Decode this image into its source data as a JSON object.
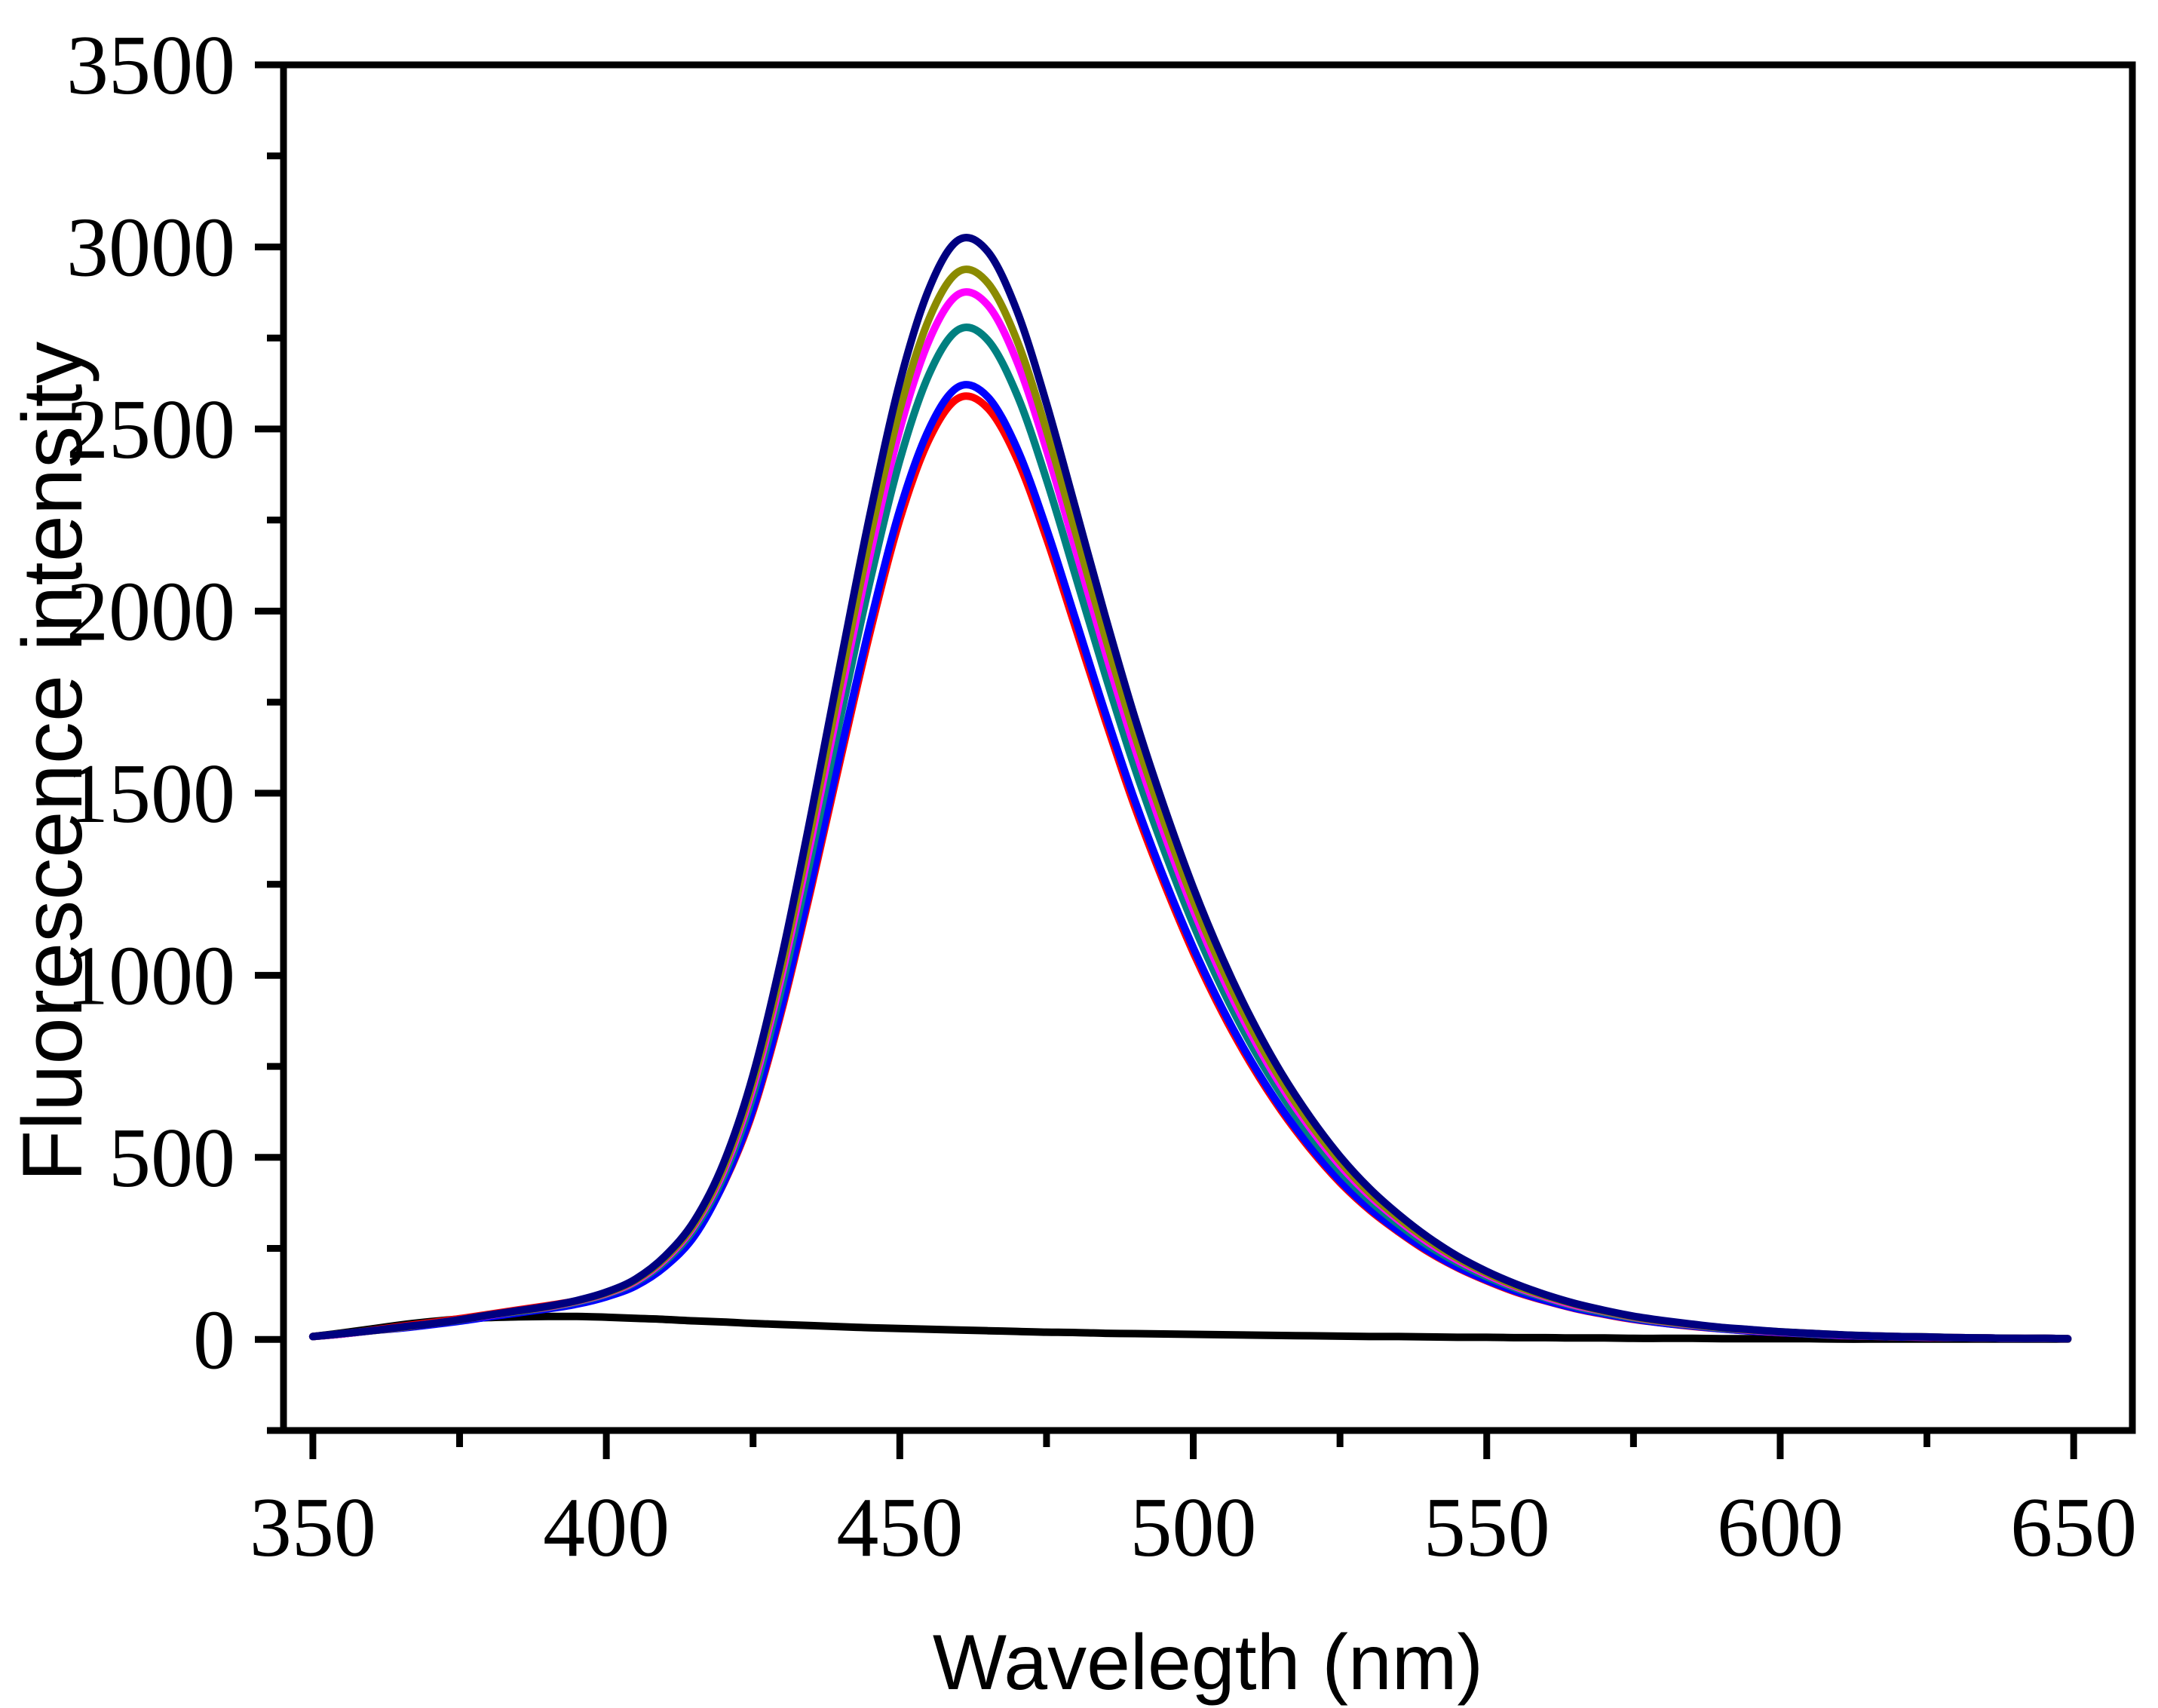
{
  "chart_data": {
    "type": "line",
    "title": "",
    "xlabel": "Wavelegth (nm)",
    "ylabel": "Fluorescence intensity",
    "xlim": [
      345,
      660
    ],
    "ylim": [
      -250,
      3500
    ],
    "grid": false,
    "legend": "none",
    "frame": "full-box",
    "tick_direction": "out",
    "x_axis": {
      "ticks_major": [
        350,
        400,
        450,
        500,
        550,
        600,
        650
      ],
      "ticks_minor": [
        375,
        425,
        475,
        525,
        575,
        625
      ],
      "tick_labels": [
        "350",
        "400",
        "450",
        "500",
        "550",
        "600",
        "650"
      ]
    },
    "y_axis": {
      "ticks_major": [
        0,
        500,
        1000,
        1500,
        2000,
        2500,
        3000,
        3500
      ],
      "ticks_minor": [
        -250,
        250,
        750,
        1250,
        1750,
        2250,
        2750,
        3250
      ],
      "tick_labels": [
        "0",
        "500",
        "1000",
        "1500",
        "2000",
        "2500",
        "3000",
        "3500"
      ]
    },
    "x": [
      350,
      355,
      360,
      365,
      370,
      375,
      380,
      385,
      390,
      395,
      400,
      405,
      410,
      415,
      420,
      425,
      430,
      435,
      440,
      445,
      450,
      455,
      460,
      465,
      470,
      475,
      480,
      485,
      490,
      495,
      500,
      505,
      510,
      515,
      520,
      525,
      530,
      535,
      540,
      545,
      550,
      555,
      560,
      565,
      570,
      575,
      580,
      585,
      590,
      595,
      600,
      605,
      610,
      615,
      620,
      625,
      630,
      635,
      640,
      645,
      649
    ],
    "series": [
      {
        "name": "black",
        "color": "#000000",
        "peak": {
          "wavelength_nm": 393,
          "intensity": 63
        },
        "values": [
          8,
          18,
          29,
          40,
          49,
          56,
          60,
          62,
          63,
          63,
          61,
          58,
          55,
          51,
          48,
          44,
          41,
          38,
          35,
          32,
          30,
          28,
          26,
          24,
          22,
          20,
          19,
          17,
          16,
          15,
          14,
          13,
          12,
          11,
          10,
          9,
          8,
          8,
          7,
          6,
          6,
          5,
          5,
          4,
          4,
          3,
          3,
          3,
          2,
          2,
          2,
          2,
          1,
          1,
          1,
          1,
          1,
          1,
          1,
          1,
          1
        ]
      },
      {
        "name": "red",
        "color": "#FF0000",
        "peak": {
          "wavelength_nm": 460,
          "intensity": 2585
        },
        "values": [
          8,
          15,
          25,
          36,
          46,
          57,
          69,
          81,
          93,
          106,
          126,
          156,
          209,
          292,
          428,
          627,
          911,
          1246,
          1601,
          1946,
          2251,
          2472,
          2585,
          2557,
          2417,
          2200,
          1951,
          1701,
          1464,
          1254,
          1063,
          896,
          752,
          628,
          522,
          431,
          356,
          295,
          241,
          197,
          161,
          130,
          106,
          85,
          69,
          55,
          45,
          36,
          29,
          23,
          19,
          15,
          11,
          9,
          7,
          6,
          5,
          4,
          3,
          3,
          2
        ]
      },
      {
        "name": "blue",
        "color": "#0000FF",
        "peak": {
          "wavelength_nm": 460,
          "intensity": 2616
        },
        "values": [
          8,
          15,
          24,
          31,
          40,
          50,
          62,
          73,
          84,
          97,
          117,
          147,
          200,
          284,
          430,
          634,
          922,
          1261,
          1620,
          1969,
          2278,
          2501,
          2616,
          2588,
          2446,
          2227,
          1975,
          1721,
          1482,
          1268,
          1076,
          907,
          761,
          635,
          528,
          436,
          360,
          298,
          244,
          199,
          163,
          132,
          107,
          86,
          70,
          56,
          45,
          37,
          29,
          23,
          19,
          15,
          11,
          9,
          7,
          6,
          5,
          4,
          3,
          3,
          2
        ]
      },
      {
        "name": "dark-cyan",
        "color": "#008080",
        "peak": {
          "wavelength_nm": 460,
          "intensity": 2773
        },
        "values": [
          8,
          15,
          24,
          33,
          43,
          53,
          66,
          77,
          88,
          103,
          124,
          157,
          214,
          304,
          449,
          670,
          975,
          1335,
          1716,
          2087,
          2414,
          2651,
          2773,
          2744,
          2593,
          2361,
          2093,
          1825,
          1571,
          1345,
          1140,
          961,
          806,
          673,
          559,
          462,
          382,
          316,
          258,
          211,
          172,
          140,
          114,
          91,
          74,
          59,
          48,
          39,
          31,
          25,
          20,
          16,
          12,
          10,
          8,
          6,
          5,
          4,
          3,
          3,
          2
        ]
      },
      {
        "name": "magenta",
        "color": "#FF00FF",
        "peak": {
          "wavelength_nm": 460,
          "intensity": 2870
        },
        "values": [
          8,
          15,
          24,
          33,
          43,
          54,
          66,
          78,
          89,
          105,
          126,
          160,
          220,
          313,
          463,
          692,
          1008,
          1380,
          1776,
          2159,
          2498,
          2744,
          2870,
          2840,
          2684,
          2443,
          2166,
          1888,
          1626,
          1391,
          1180,
          994,
          834,
          696,
          579,
          478,
          395,
          327,
          267,
          218,
          178,
          144,
          117,
          94,
          77,
          61,
          49,
          40,
          32,
          25,
          20,
          17,
          12,
          10,
          8,
          6,
          5,
          4,
          3,
          3,
          2
        ]
      },
      {
        "name": "dark-yellow",
        "color": "#8B8B00",
        "peak": {
          "wavelength_nm": 460,
          "intensity": 2932
        },
        "values": [
          8,
          16,
          24,
          33,
          43,
          54,
          67,
          78,
          90,
          106,
          128,
          163,
          224,
          318,
          472,
          707,
          1029,
          1410,
          1813,
          2206,
          2552,
          2803,
          2932,
          2901,
          2742,
          2496,
          2213,
          1929,
          1661,
          1422,
          1205,
          1016,
          852,
          711,
          591,
          489,
          403,
          333,
          273,
          223,
          182,
          147,
          120,
          97,
          78,
          62,
          50,
          41,
          32,
          26,
          21,
          17,
          13,
          10,
          8,
          7,
          5,
          4,
          3,
          3,
          2
        ]
      },
      {
        "name": "navy",
        "color": "#000080",
        "peak": {
          "wavelength_nm": 460,
          "intensity": 3019
        },
        "values": [
          8,
          16,
          24,
          34,
          43,
          54,
          67,
          79,
          91,
          107,
          130,
          166,
          229,
          326,
          485,
          726,
          1059,
          1451,
          1867,
          2271,
          2628,
          2886,
          3019,
          2987,
          2823,
          2570,
          2279,
          1986,
          1710,
          1464,
          1241,
          1046,
          877,
          732,
          609,
          503,
          415,
          343,
          281,
          229,
          187,
          152,
          123,
          99,
          80,
          64,
          52,
          42,
          33,
          27,
          21,
          17,
          13,
          10,
          8,
          7,
          5,
          4,
          3,
          3,
          2
        ]
      }
    ]
  }
}
